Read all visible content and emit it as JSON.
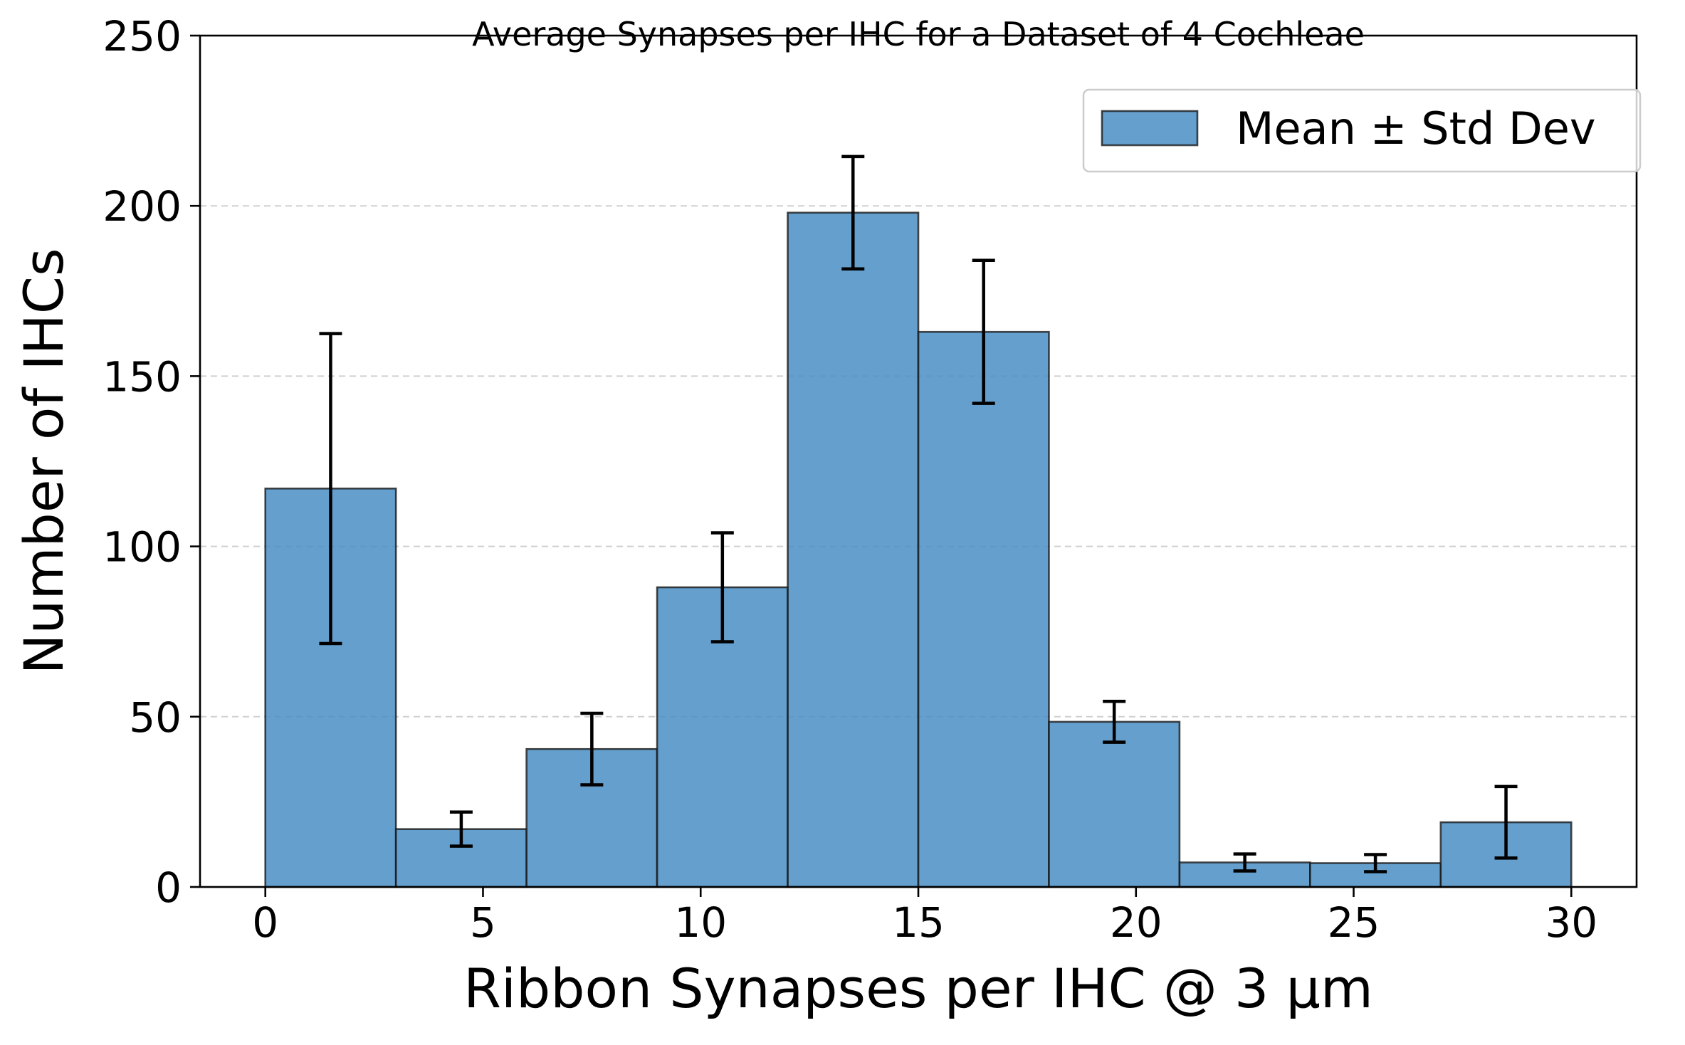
{
  "chart_data": {
    "type": "bar",
    "title": "Average Synapses per IHC for a Dataset of 4 Cochleae",
    "xlabel": "Ribbon Synapses per IHC @ 3 µm",
    "ylabel": "Number of IHCs",
    "xlim": [
      -1.5,
      31.5
    ],
    "ylim": [
      0,
      250
    ],
    "xticks": [
      0,
      5,
      10,
      15,
      20,
      25,
      30
    ],
    "yticks": [
      0,
      50,
      100,
      150,
      200,
      250
    ],
    "grid": {
      "y": true,
      "style": "dashed"
    },
    "legend": {
      "position": "top-right",
      "entries": [
        "Mean ± Std Dev"
      ]
    },
    "bin_edges": [
      0,
      3,
      6,
      9,
      12,
      15,
      18,
      21,
      24,
      27,
      30
    ],
    "series": [
      {
        "name": "Mean ± Std Dev",
        "color": "#4a8ec4",
        "values": [
          117,
          17,
          40.5,
          88,
          198,
          163,
          48.5,
          7.2,
          7,
          19
        ],
        "errors": [
          45.5,
          5,
          10.5,
          16,
          16.5,
          21,
          6,
          2.5,
          2.5,
          10.5
        ]
      }
    ]
  }
}
